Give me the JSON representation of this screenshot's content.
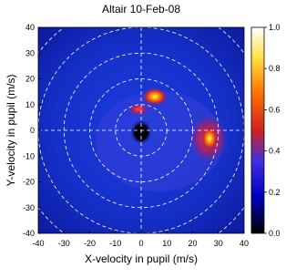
{
  "chart_data": {
    "type": "heatmap",
    "title": "Altair 10-Feb-08",
    "x_label": "X-velocity in pupil (m/s)",
    "y_label": "Y-velocity in pupil (m/s)",
    "xlim": [
      -40,
      40
    ],
    "ylim": [
      -40,
      40
    ],
    "xticks": [
      -40,
      -30,
      -20,
      -10,
      0,
      10,
      20,
      30,
      40
    ],
    "yticks": [
      -40,
      -30,
      -20,
      -10,
      0,
      10,
      20,
      30,
      40
    ],
    "colorbar_lim": [
      0,
      1
    ],
    "colorbar_ticks": [
      {
        "value": 0,
        "label": "0.0"
      },
      0.2,
      0.4,
      0.6,
      0.8,
      {
        "value": 1,
        "label": "1.0"
      }
    ]
  }
}
